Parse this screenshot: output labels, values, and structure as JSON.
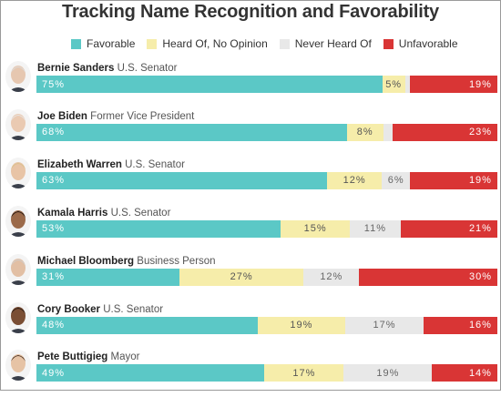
{
  "chart_data": {
    "type": "bar",
    "stacked": true,
    "orientation": "horizontal",
    "title": "Tracking Name Recognition and Favorability",
    "legend_position": "top",
    "series": [
      {
        "name": "Favorable",
        "color": "#5bc8c6",
        "values": [
          75,
          68,
          63,
          53,
          31,
          48,
          49
        ]
      },
      {
        "name": "Heard Of, No Opinion",
        "color": "#f6edaa",
        "values": [
          5,
          8,
          12,
          15,
          27,
          19,
          17
        ]
      },
      {
        "name": "Never Heard Of",
        "color": "#e8e8e8",
        "values": [
          1,
          2,
          6,
          11,
          12,
          17,
          19
        ]
      },
      {
        "name": "Unfavorable",
        "color": "#d93535",
        "values": [
          19,
          23,
          19,
          21,
          30,
          16,
          14
        ]
      }
    ],
    "series_labels_shown": [
      [
        "75%",
        "68%",
        "63%",
        "53%",
        "31%",
        "48%",
        "49%"
      ],
      [
        "5%",
        "8%",
        "12%",
        "15%",
        "27%",
        "19%",
        "17%"
      ],
      [
        "",
        "",
        "6%",
        "11%",
        "12%",
        "17%",
        "19%"
      ],
      [
        "19%",
        "23%",
        "19%",
        "21%",
        "30%",
        "16%",
        "14%"
      ]
    ],
    "categories": [
      "Bernie Sanders",
      "Joe Biden",
      "Elizabeth Warren",
      "Kamala Harris",
      "Michael Bloomberg",
      "Cory Booker",
      "Pete Buttigieg"
    ],
    "roles": [
      "U.S. Senator",
      "Former Vice President",
      "U.S. Senator",
      "U.S. Senator",
      "Business Person",
      "U.S. Senator",
      "Mayor"
    ],
    "xlim": [
      0,
      100
    ],
    "grid": false
  }
}
